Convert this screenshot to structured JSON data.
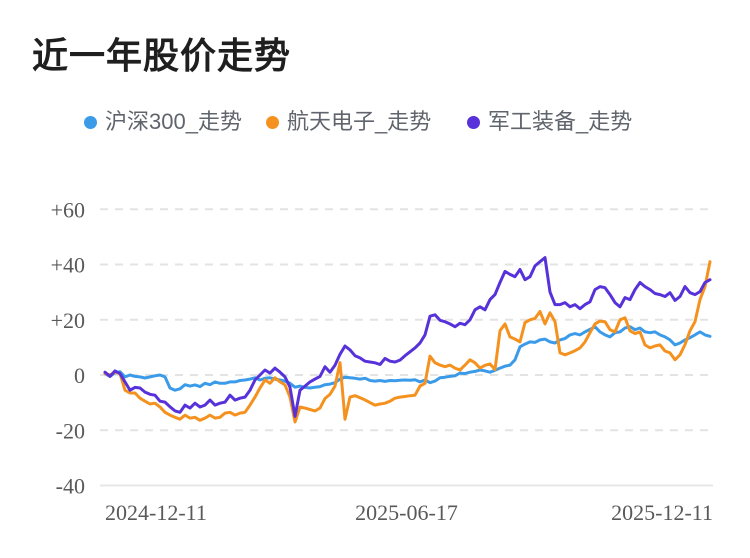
{
  "header": {
    "title": "近一年股价走势"
  },
  "legend": {
    "items": [
      {
        "label": "沪深300_走势",
        "color": "#3b9be9"
      },
      {
        "label": "航天电子_走势",
        "color": "#f5921f"
      },
      {
        "label": "军工装备_走势",
        "color": "#5732da"
      }
    ]
  },
  "chart_data": {
    "type": "line",
    "title": "近一年股价走势",
    "xlabel": "",
    "ylabel": "",
    "ylim": [
      -40,
      60
    ],
    "grid": "horizontal-dashed",
    "legend_position": "top",
    "x_start": "2024-12-11",
    "x_end": "2025-12-11",
    "x_tick_labels": [
      "2024-12-11",
      "2025-06-17",
      "2025-12-11"
    ],
    "y_tick_values": [
      60,
      40,
      20,
      0,
      -20,
      -40
    ],
    "y_tick_labels": [
      "+60",
      "+40",
      "+20",
      "0",
      "-20",
      "-40"
    ],
    "unit": "percent change",
    "series": [
      {
        "name": "沪深300_走势",
        "color": "#3b9be9",
        "values": [
          0.5,
          -0.5,
          0.8,
          1.2,
          -0.7,
          0,
          -0.5,
          -0.7,
          -1.1,
          -0.7,
          -0.3,
          0,
          -0.7,
          -4.7,
          -5.5,
          -5,
          -3.5,
          -4,
          -3.6,
          -4.2,
          -3,
          -3.5,
          -2.5,
          -3,
          -3,
          -2.5,
          -2.5,
          -2,
          -1.8,
          -1.5,
          -1,
          -1.8,
          -1.2,
          -1,
          -1.5,
          -1.8,
          -2.2,
          -3,
          -4.4,
          -4,
          -4.5,
          -4.7,
          -4.4,
          -4.2,
          -3.5,
          -3.3,
          -2.8,
          -1.5,
          -0.8,
          -1,
          -1.2,
          -1.5,
          -1.2,
          -2,
          -2.2,
          -2,
          -2.3,
          -2,
          -2.1,
          -1.9,
          -1.8,
          -1.9,
          -1.7,
          -2.5,
          -1.8,
          -2.8,
          -2.2,
          -1,
          -0.8,
          -0.5,
          -0.3,
          0.7,
          0.5,
          1,
          1.3,
          1.8,
          1.5,
          1,
          1.7,
          2.5,
          3.2,
          3.6,
          5.5,
          10.2,
          11.2,
          12,
          11.8,
          12.7,
          13,
          12,
          11.6,
          12.7,
          13.2,
          14.5,
          15,
          14.5,
          15.6,
          16.5,
          17.5,
          15.6,
          14.5,
          13.8,
          15.3,
          15.6,
          17,
          17.5,
          16.4,
          17,
          15.6,
          15.3,
          15.6,
          14.5,
          13.8,
          12.7,
          10.9,
          11.6,
          12.7,
          13.5,
          14.5,
          15.6,
          14.5,
          14
        ]
      },
      {
        "name": "航天电子_走势",
        "color": "#f5921f",
        "values": [
          0.5,
          0,
          1,
          0.5,
          -5.5,
          -6.5,
          -6.5,
          -8.4,
          -9.5,
          -10.5,
          -10.2,
          -11.6,
          -13.5,
          -14.5,
          -15.3,
          -16,
          -14.5,
          -15.6,
          -15.3,
          -16.4,
          -15.6,
          -14.5,
          -15.6,
          -15.3,
          -13.8,
          -13.5,
          -14.5,
          -13.8,
          -13.5,
          -10.9,
          -8,
          -4.7,
          -1.8,
          -3,
          -1,
          -2.5,
          -3.6,
          -8,
          -17,
          -11.6,
          -12,
          -12.5,
          -13,
          -12,
          -8.5,
          -7,
          -4,
          4.5,
          -16,
          -8,
          -7.5,
          -8.2,
          -9,
          -10,
          -10.9,
          -10.5,
          -10.2,
          -9.5,
          -8.4,
          -8,
          -7.8,
          -7.5,
          -7.3,
          -4,
          -3,
          6.8,
          4.4,
          3.6,
          3,
          3.6,
          2.5,
          1.8,
          3.6,
          5.5,
          4.4,
          2.5,
          3.5,
          4,
          2,
          16,
          18.5,
          13.8,
          13,
          12,
          19,
          20,
          20.5,
          23,
          18.5,
          22.5,
          19.3,
          8,
          7.3,
          8,
          8.8,
          9.8,
          12,
          15.3,
          18.5,
          19.5,
          19.3,
          16.4,
          15.6,
          20,
          20.7,
          16,
          15,
          15.6,
          10.9,
          9.8,
          10.5,
          10.9,
          8.7,
          8,
          5.5,
          7.3,
          11,
          16,
          19.3,
          27.3,
          32,
          41
        ]
      },
      {
        "name": "军工装备_走势",
        "color": "#5732da",
        "values": [
          1,
          -0.5,
          1.5,
          0.5,
          -2.5,
          -5.5,
          -4.5,
          -4.7,
          -6.2,
          -7,
          -7.3,
          -9.5,
          -9.8,
          -11.5,
          -13,
          -13.5,
          -10.9,
          -12,
          -10.2,
          -11.6,
          -10.9,
          -9.1,
          -10.9,
          -10.2,
          -9.8,
          -7.3,
          -9.1,
          -8.4,
          -8,
          -5.5,
          -1.8,
          0,
          1.8,
          0.7,
          2.5,
          1,
          -0.7,
          -4.4,
          -15,
          -5.5,
          -4,
          -2.5,
          -1.5,
          -0.5,
          3,
          1,
          3.5,
          7.5,
          10.5,
          9.1,
          7,
          6.2,
          5,
          4.7,
          4.4,
          3.8,
          6,
          5,
          4.7,
          5.4,
          7,
          8.4,
          9.8,
          11.6,
          14.5,
          21.3,
          21.8,
          19.8,
          19.3,
          18.5,
          17.5,
          18.7,
          18.2,
          20,
          23.6,
          24.7,
          23.6,
          27.3,
          29.1,
          33.5,
          37.5,
          36.4,
          35.6,
          38.2,
          34.5,
          35.6,
          39.5,
          41,
          42.5,
          30,
          25.5,
          25.5,
          26.2,
          24.7,
          25.5,
          24,
          25.5,
          26.5,
          30.9,
          32,
          31.6,
          29.1,
          26.2,
          24.7,
          28,
          27.3,
          30.9,
          33.5,
          32,
          30.9,
          29.5,
          29.1,
          28.4,
          29.8,
          27,
          28.4,
          32,
          29.8,
          29.1,
          30.2,
          33.5,
          34.5
        ]
      }
    ]
  }
}
